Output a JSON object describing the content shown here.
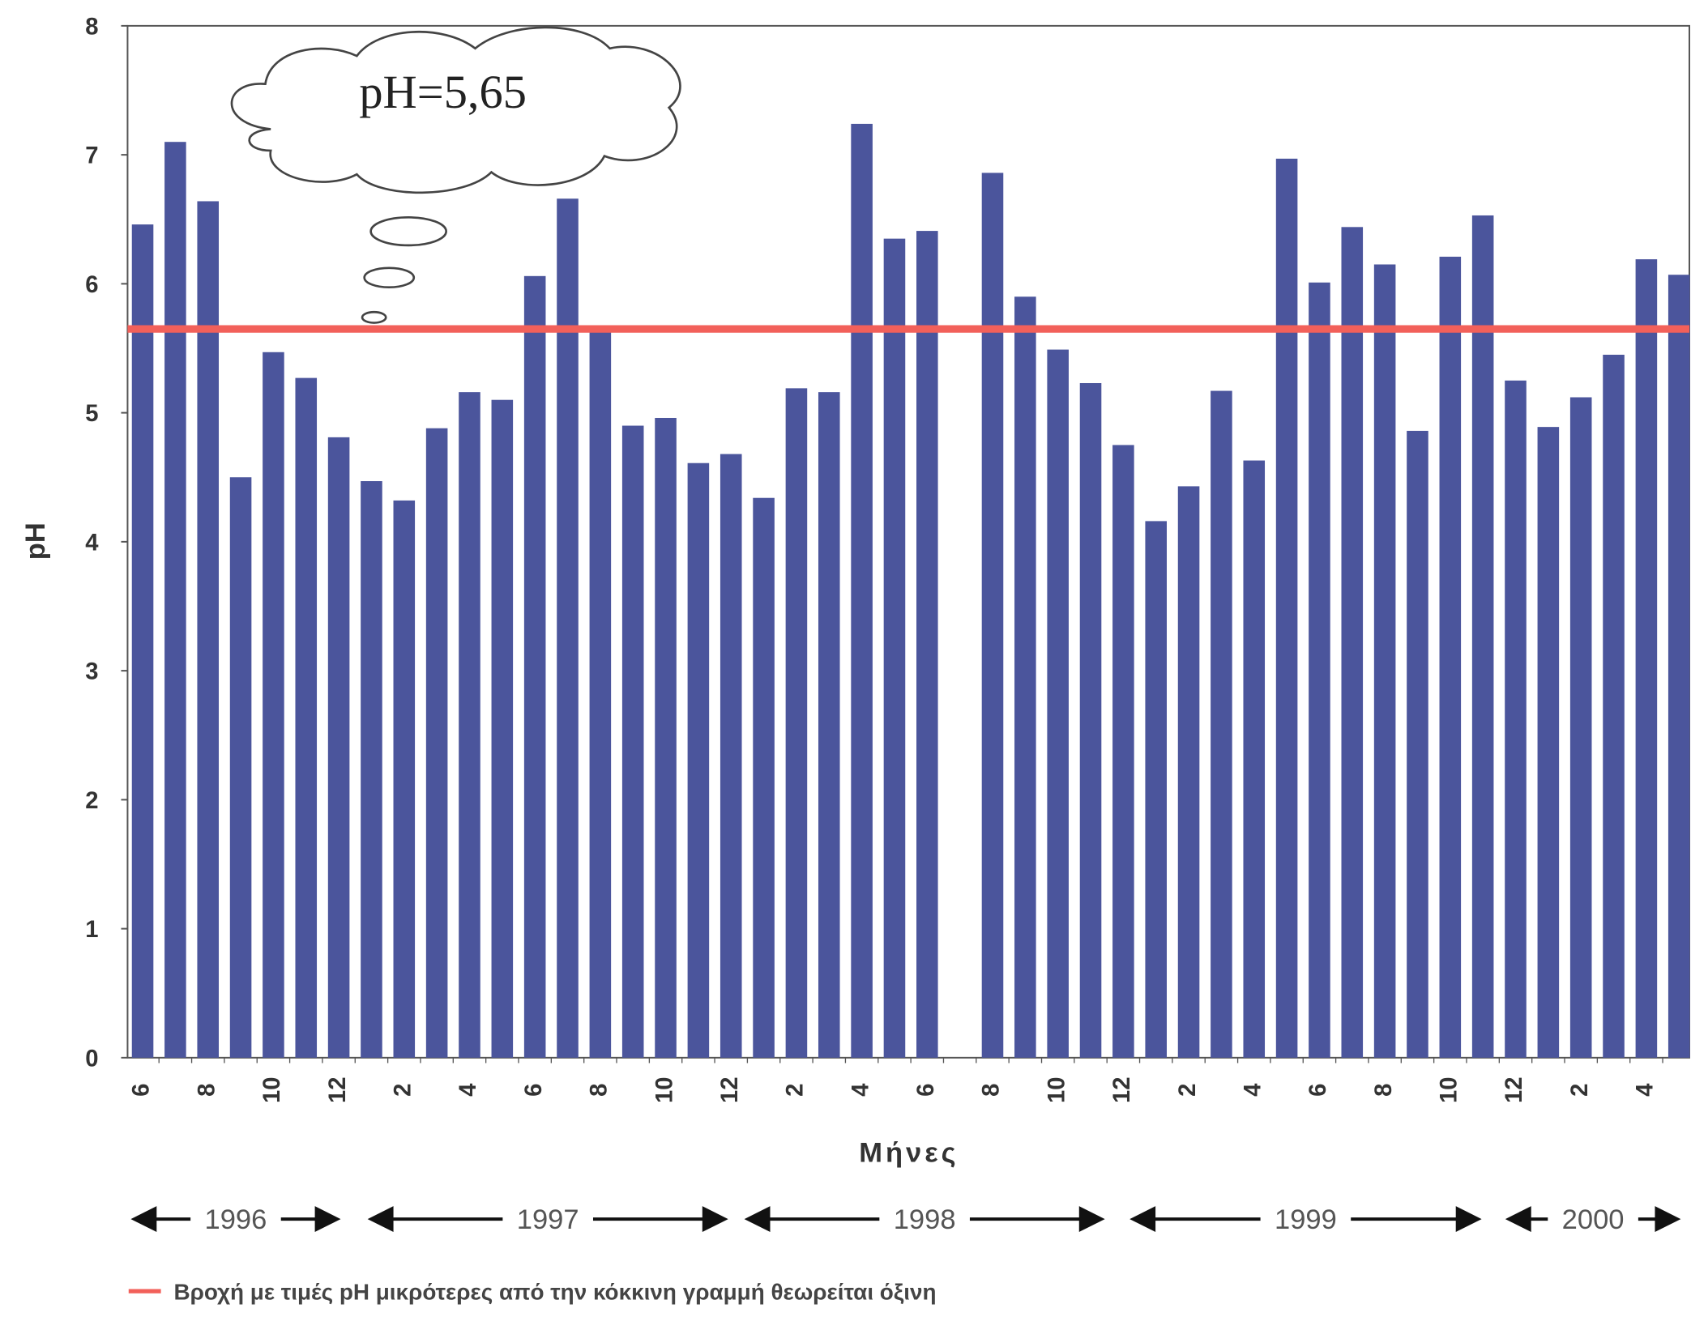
{
  "chart_data": {
    "type": "bar",
    "y_label": "pH",
    "x_label": "Μήνες",
    "color": "#4b559c",
    "categories": [
      "6",
      null,
      "8",
      null,
      "10",
      null,
      "12",
      null,
      "2",
      null,
      "4",
      null,
      "6",
      null,
      "8",
      null,
      "10",
      null,
      "12",
      null,
      "2",
      null,
      "4",
      null,
      "6",
      null,
      "8",
      null,
      "10",
      null,
      "12",
      null,
      "2",
      null,
      "4",
      null,
      "6",
      null,
      "8",
      null,
      "10",
      null,
      "12",
      null,
      "2",
      null,
      "4",
      null
    ],
    "values": [
      6.46,
      7.1,
      6.64,
      4.5,
      5.47,
      5.27,
      4.81,
      4.47,
      4.32,
      4.88,
      5.16,
      5.1,
      6.06,
      6.66,
      5.63,
      4.9,
      4.96,
      4.61,
      4.68,
      4.34,
      5.19,
      5.16,
      7.24,
      6.35,
      6.41,
      null,
      6.86,
      5.9,
      5.49,
      5.23,
      4.75,
      4.16,
      4.43,
      5.17,
      4.63,
      6.97,
      6.01,
      6.44,
      6.15,
      4.86,
      6.21,
      6.53,
      5.25,
      4.89,
      5.12,
      5.45,
      6.19,
      6.07
    ],
    "ylim": [
      0,
      8
    ],
    "yticks": [
      0,
      1,
      2,
      3,
      4,
      5,
      6,
      7,
      8
    ],
    "reference_line": {
      "value": 5.65,
      "color": "#f2605a",
      "annotation": "pH=5,65"
    },
    "years": [
      "1996",
      "1997",
      "1998",
      "1999",
      "2000"
    ],
    "legend": "Βροχή  με τιμές pH μικρότερες από την κόκκινη γραμμή θεωρείται όξινη"
  }
}
